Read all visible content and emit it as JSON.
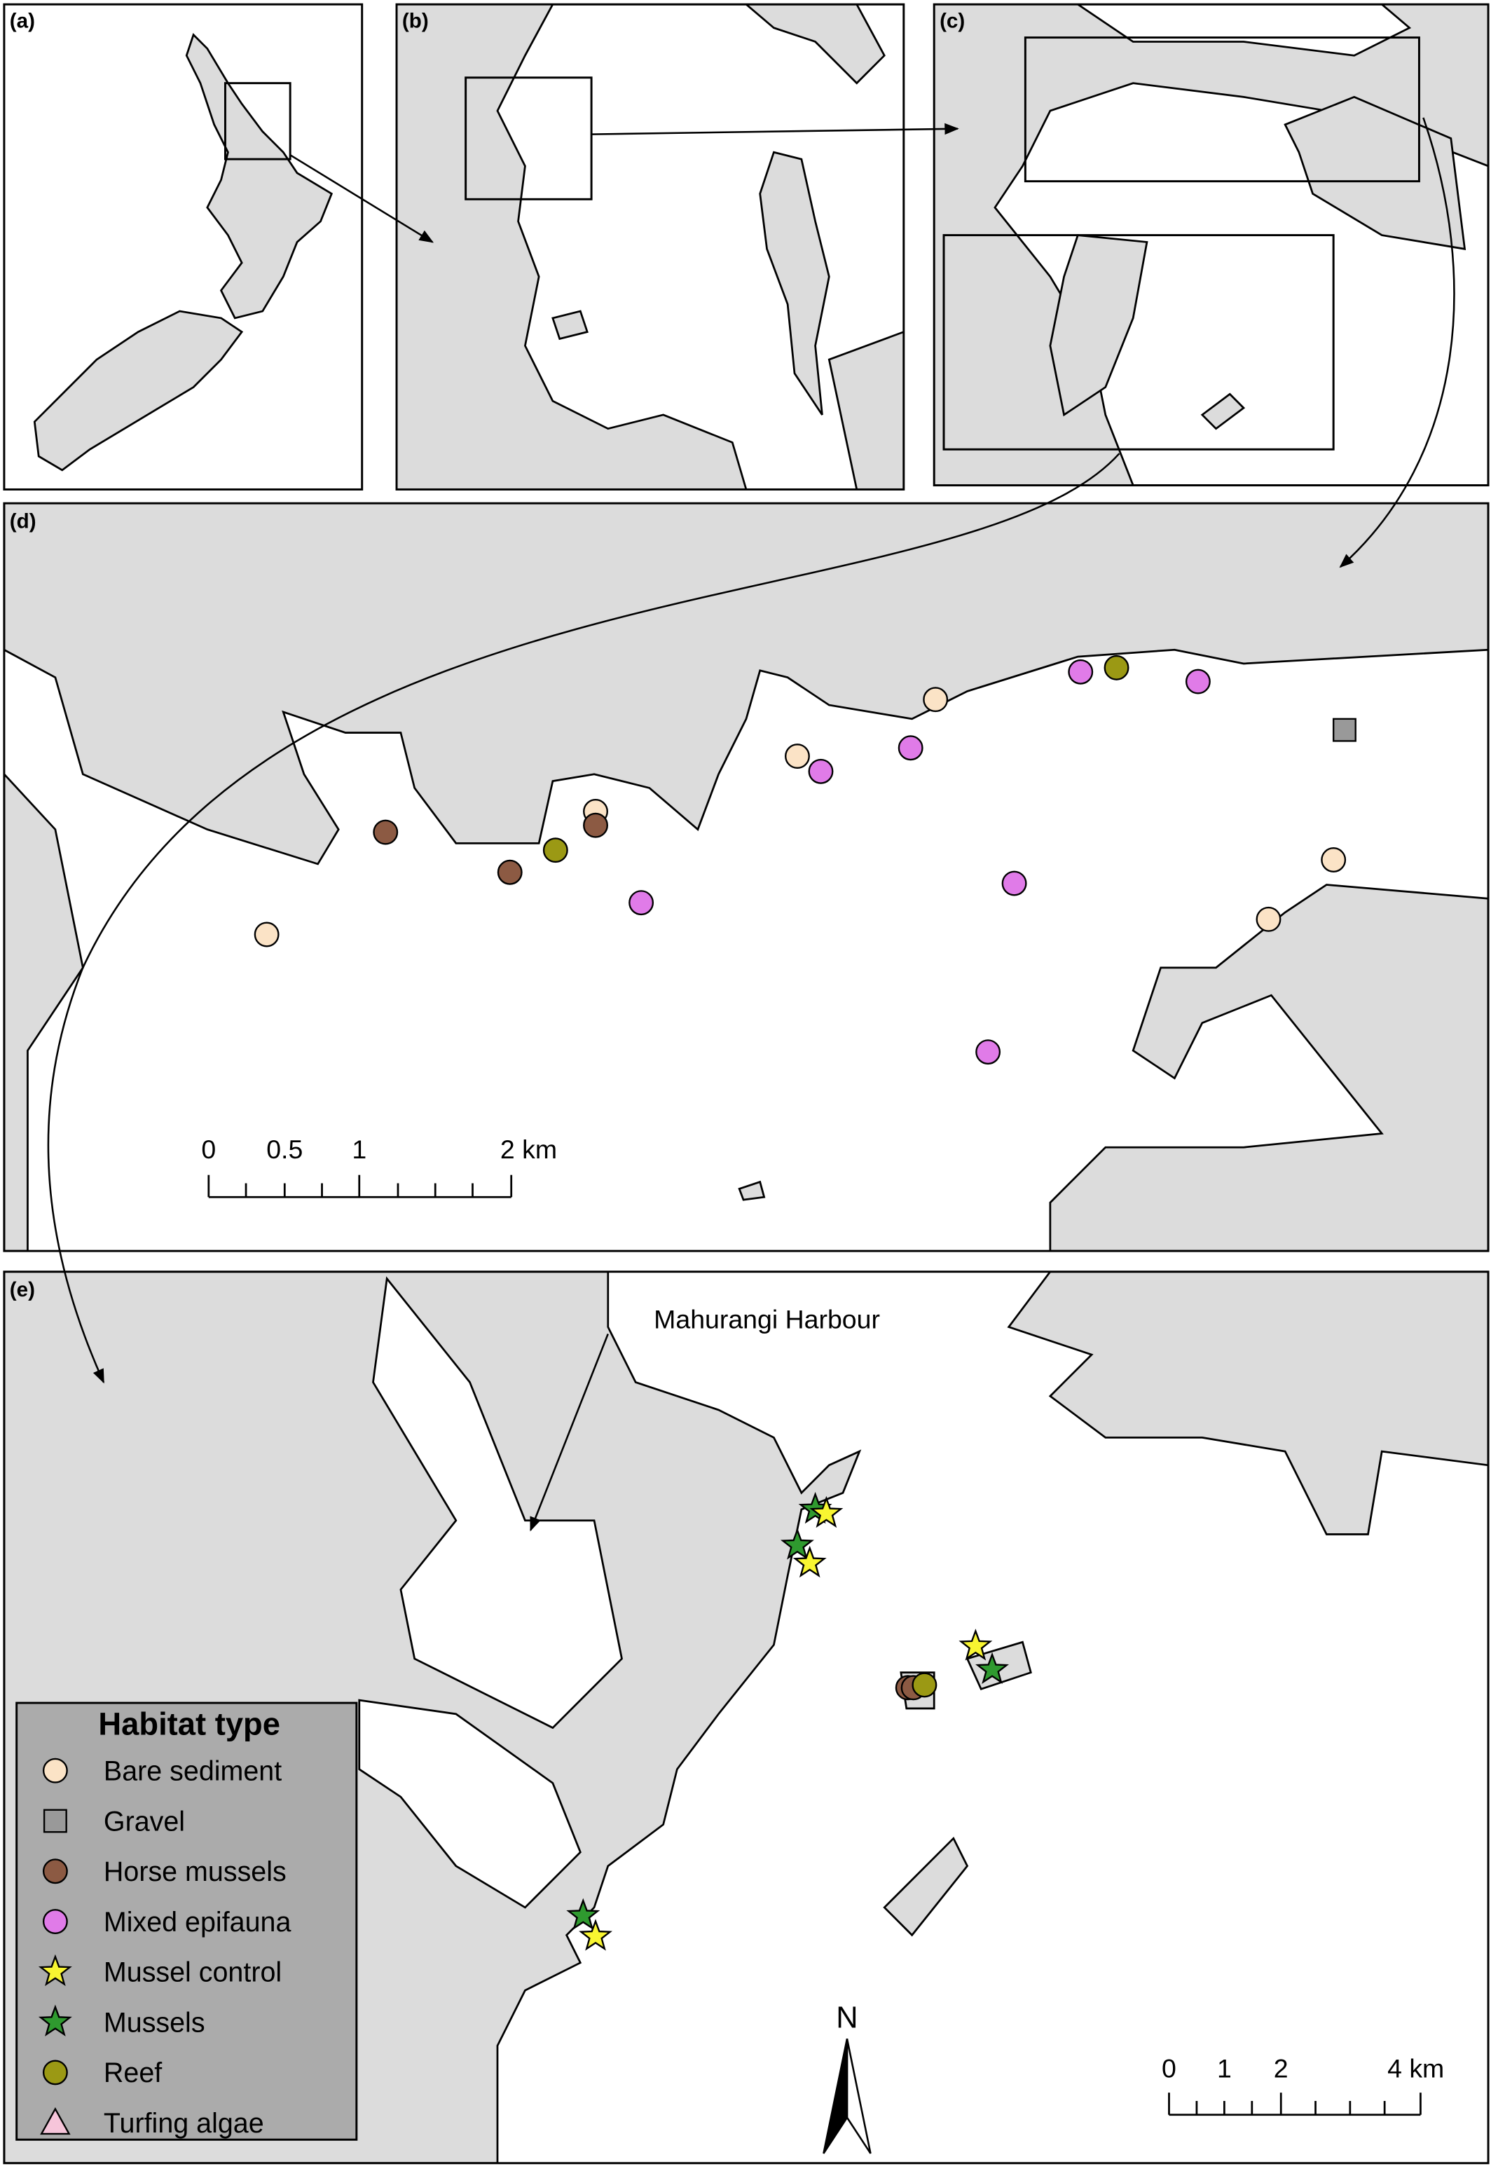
{
  "panels": [
    "(a)",
    "(b)",
    "(c)",
    "(d)",
    "(e)"
  ],
  "scale_bar_d": [
    "0",
    "0.5",
    "1",
    "2 km"
  ],
  "scale_bar_e": [
    "0",
    "1",
    "2",
    "4 km"
  ],
  "annotation": "Mahurangi Harbour",
  "north": "N",
  "legend": {
    "title": "Habitat type",
    "items": [
      {
        "label": "Bare sediment",
        "color": "#fbe3c6"
      },
      {
        "label": "Gravel",
        "color": "#999999"
      },
      {
        "label": "Horse mussels",
        "color": "#8c5a43"
      },
      {
        "label": "Mixed epifauna",
        "color": "#e07be8"
      },
      {
        "label": "Mussel control",
        "color": "#f8f531"
      },
      {
        "label": "Mussels",
        "color": "#2f9a2f"
      },
      {
        "label": "Reef",
        "color": "#9b9914"
      },
      {
        "label": "Turfing algae",
        "color": "#f6c5da"
      }
    ]
  }
}
